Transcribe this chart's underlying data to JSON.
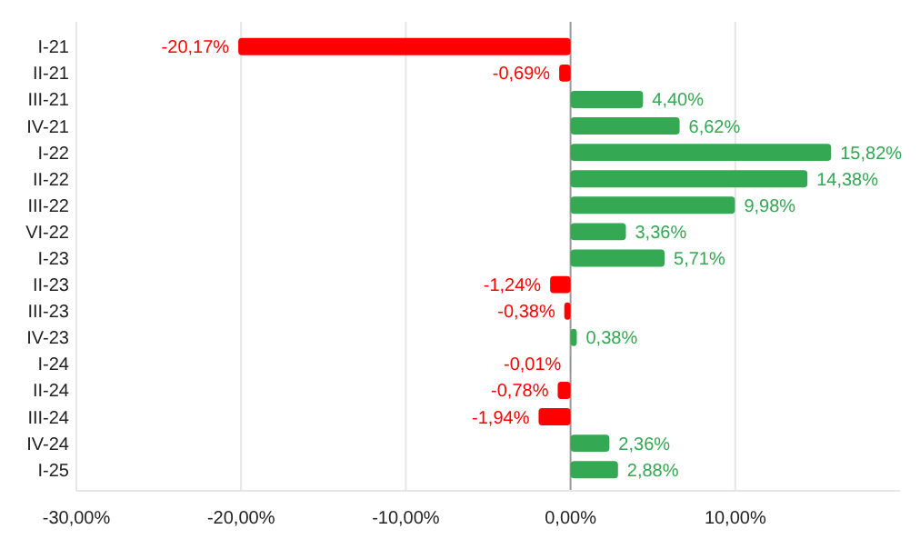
{
  "chart_data": {
    "type": "bar",
    "orientation": "horizontal",
    "categories": [
      "I-21",
      "II-21",
      "III-21",
      "IV-21",
      "I-22",
      "II-22",
      "III-22",
      "VI-22",
      "I-23",
      "II-23",
      "III-23",
      "IV-23",
      "I-24",
      "II-24",
      "III-24",
      "IV-24",
      "I-25"
    ],
    "values": [
      -20.17,
      -0.69,
      4.4,
      6.62,
      15.82,
      14.38,
      9.98,
      3.36,
      5.71,
      -1.24,
      -0.38,
      0.38,
      -0.01,
      -0.78,
      -1.94,
      2.36,
      2.88
    ],
    "colors": [
      "#ff0000",
      "#ff0000",
      "#34a853",
      "#34a853",
      "#34a853",
      "#34a853",
      "#34a853",
      "#34a853",
      "#34a853",
      "#ff0000",
      "#ff0000",
      "#34a853",
      "#ff0000",
      "#ff0000",
      "#ff0000",
      "#34a853",
      "#34a853"
    ],
    "value_labels": [
      "-20,17%",
      "-0,69%",
      "4,40%",
      "6,62%",
      "15,82%",
      "14,38%",
      "9,98%",
      "3,36%",
      "5,71%",
      "-1,24%",
      "-0,38%",
      "0,38%",
      "-0,01%",
      "-0,78%",
      "-1,94%",
      "2,36%",
      "2,88%"
    ],
    "xlim": [
      -30,
      20
    ],
    "xticks": [
      {
        "value": -30,
        "label": "-30,00%"
      },
      {
        "value": -20,
        "label": "-20,00%"
      },
      {
        "value": -10,
        "label": "-10,00%"
      },
      {
        "value": 0,
        "label": "0,00%"
      },
      {
        "value": 10,
        "label": "10,00%"
      }
    ],
    "grid": "x"
  }
}
